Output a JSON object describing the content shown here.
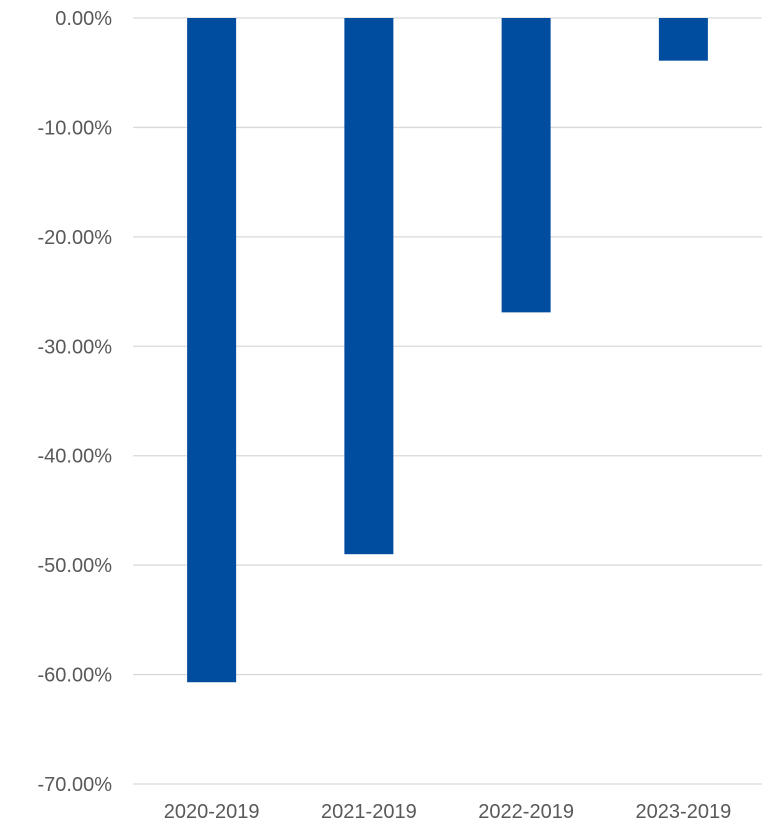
{
  "chart_data": {
    "type": "bar",
    "title": "",
    "xlabel": "",
    "ylabel": "",
    "categories": [
      "2020-2019",
      "2021-2019",
      "2022-2019",
      "2023-2019"
    ],
    "values": [
      -60.7,
      -49.0,
      -26.9,
      -3.9
    ],
    "ylim": [
      -70,
      0
    ],
    "yticks": [
      0,
      -10,
      -20,
      -30,
      -40,
      -50,
      -60,
      -70
    ],
    "ytick_labels": [
      "0.00%",
      "-10.00%",
      "-20.00%",
      "-30.00%",
      "-40.00%",
      "-50.00%",
      "-60.00%",
      "-70.00%"
    ],
    "grid": true,
    "legend": "none",
    "bar_color": "#004C9F",
    "grid_color": "#D9D9D9",
    "text_color": "#595959"
  }
}
